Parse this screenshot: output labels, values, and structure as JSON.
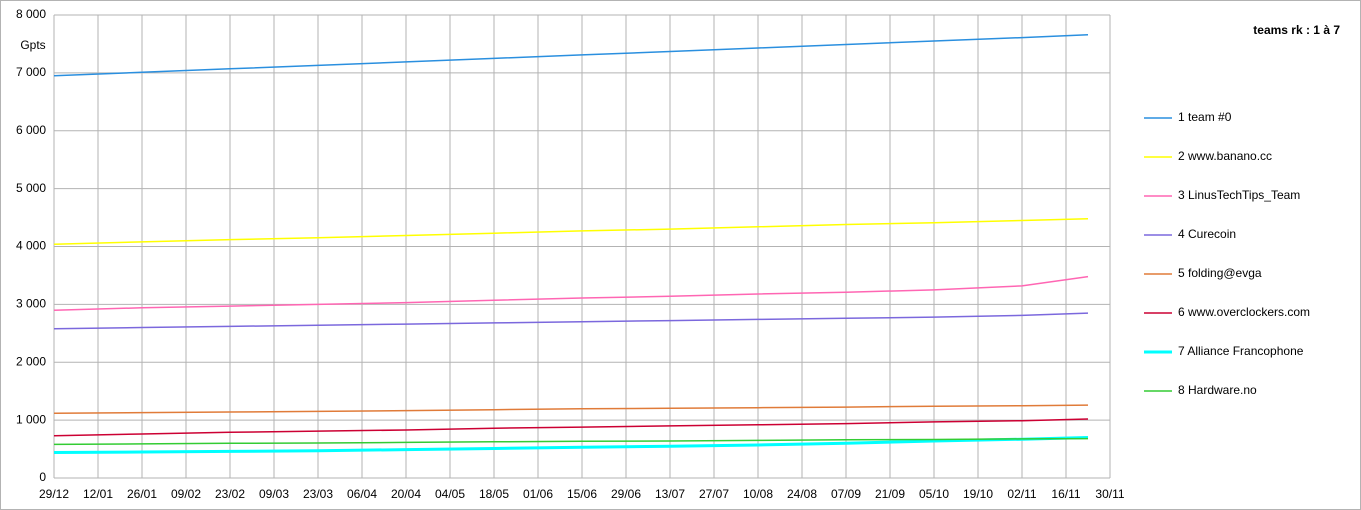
{
  "chart_data": {
    "type": "line",
    "title": "teams rk : 1 à 7",
    "y_label": "Gpts",
    "x": [
      0,
      28,
      56,
      84,
      112,
      140,
      168,
      196,
      224,
      252,
      280,
      308,
      329
    ],
    "xlim": [
      0,
      336
    ],
    "xticks": [
      {
        "value": 0,
        "label": "29/12"
      },
      {
        "value": 14,
        "label": "12/01"
      },
      {
        "value": 28,
        "label": "26/01"
      },
      {
        "value": 42,
        "label": "09/02"
      },
      {
        "value": 56,
        "label": "23/02"
      },
      {
        "value": 70,
        "label": "09/03"
      },
      {
        "value": 84,
        "label": "23/03"
      },
      {
        "value": 98,
        "label": "06/04"
      },
      {
        "value": 112,
        "label": "20/04"
      },
      {
        "value": 126,
        "label": "04/05"
      },
      {
        "value": 140,
        "label": "18/05"
      },
      {
        "value": 154,
        "label": "01/06"
      },
      {
        "value": 168,
        "label": "15/06"
      },
      {
        "value": 182,
        "label": "29/06"
      },
      {
        "value": 196,
        "label": "13/07"
      },
      {
        "value": 210,
        "label": "27/07"
      },
      {
        "value": 224,
        "label": "10/08"
      },
      {
        "value": 238,
        "label": "24/08"
      },
      {
        "value": 252,
        "label": "07/09"
      },
      {
        "value": 266,
        "label": "21/09"
      },
      {
        "value": 280,
        "label": "05/10"
      },
      {
        "value": 294,
        "label": "19/10"
      },
      {
        "value": 308,
        "label": "02/11"
      },
      {
        "value": 322,
        "label": "16/11"
      },
      {
        "value": 336,
        "label": "30/11"
      }
    ],
    "ylim": [
      0,
      8000
    ],
    "yticks": [
      0,
      {
        "value": 1000,
        "label": "1 000"
      },
      {
        "value": 2000,
        "label": "2 000"
      },
      {
        "value": 3000,
        "label": "3 000"
      },
      {
        "value": 4000,
        "label": "4 000"
      },
      {
        "value": 5000,
        "label": "5 000"
      },
      {
        "value": 6000,
        "label": "6 000"
      },
      {
        "value": 7000,
        "label": "7 000"
      },
      {
        "value": 8000,
        "label": "8 000"
      }
    ],
    "grid": true,
    "legend": "right",
    "series": [
      {
        "name": "1 team #0",
        "color": "#2a8fdf",
        "values": [
          6950,
          7010,
          7070,
          7130,
          7190,
          7250,
          7310,
          7370,
          7430,
          7490,
          7550,
          7610,
          7660
        ]
      },
      {
        "name": "2 www.banano.cc",
        "color": "#ffff00",
        "values": [
          4040,
          4080,
          4120,
          4150,
          4190,
          4230,
          4270,
          4300,
          4340,
          4380,
          4410,
          4450,
          4480
        ]
      },
      {
        "name": "3 LinusTechTips_Team",
        "color": "#ff66b3",
        "values": [
          2900,
          2940,
          2970,
          3000,
          3030,
          3070,
          3110,
          3140,
          3180,
          3210,
          3250,
          3320,
          3480
        ]
      },
      {
        "name": "4 Curecoin",
        "color": "#7b68dd",
        "values": [
          2580,
          2600,
          2620,
          2640,
          2660,
          2680,
          2700,
          2720,
          2740,
          2760,
          2780,
          2810,
          2850
        ]
      },
      {
        "name": "5 folding@evga",
        "color": "#e07b39",
        "values": [
          1120,
          1130,
          1140,
          1150,
          1165,
          1180,
          1195,
          1205,
          1215,
          1225,
          1240,
          1250,
          1260
        ]
      },
      {
        "name": "6 www.overclockers.com",
        "color": "#cc0033",
        "values": [
          730,
          760,
          790,
          810,
          830,
          860,
          880,
          900,
          920,
          940,
          970,
          990,
          1020
        ]
      },
      {
        "name": "7 Alliance Francophone",
        "color": "#00ffff",
        "values": [
          440,
          450,
          460,
          470,
          490,
          510,
          530,
          550,
          570,
          600,
          640,
          670,
          700
        ]
      },
      {
        "name": "8 Hardware.no",
        "color": "#33cc33",
        "values": [
          580,
          590,
          600,
          605,
          615,
          625,
          635,
          640,
          650,
          660,
          665,
          675,
          680
        ]
      }
    ]
  }
}
